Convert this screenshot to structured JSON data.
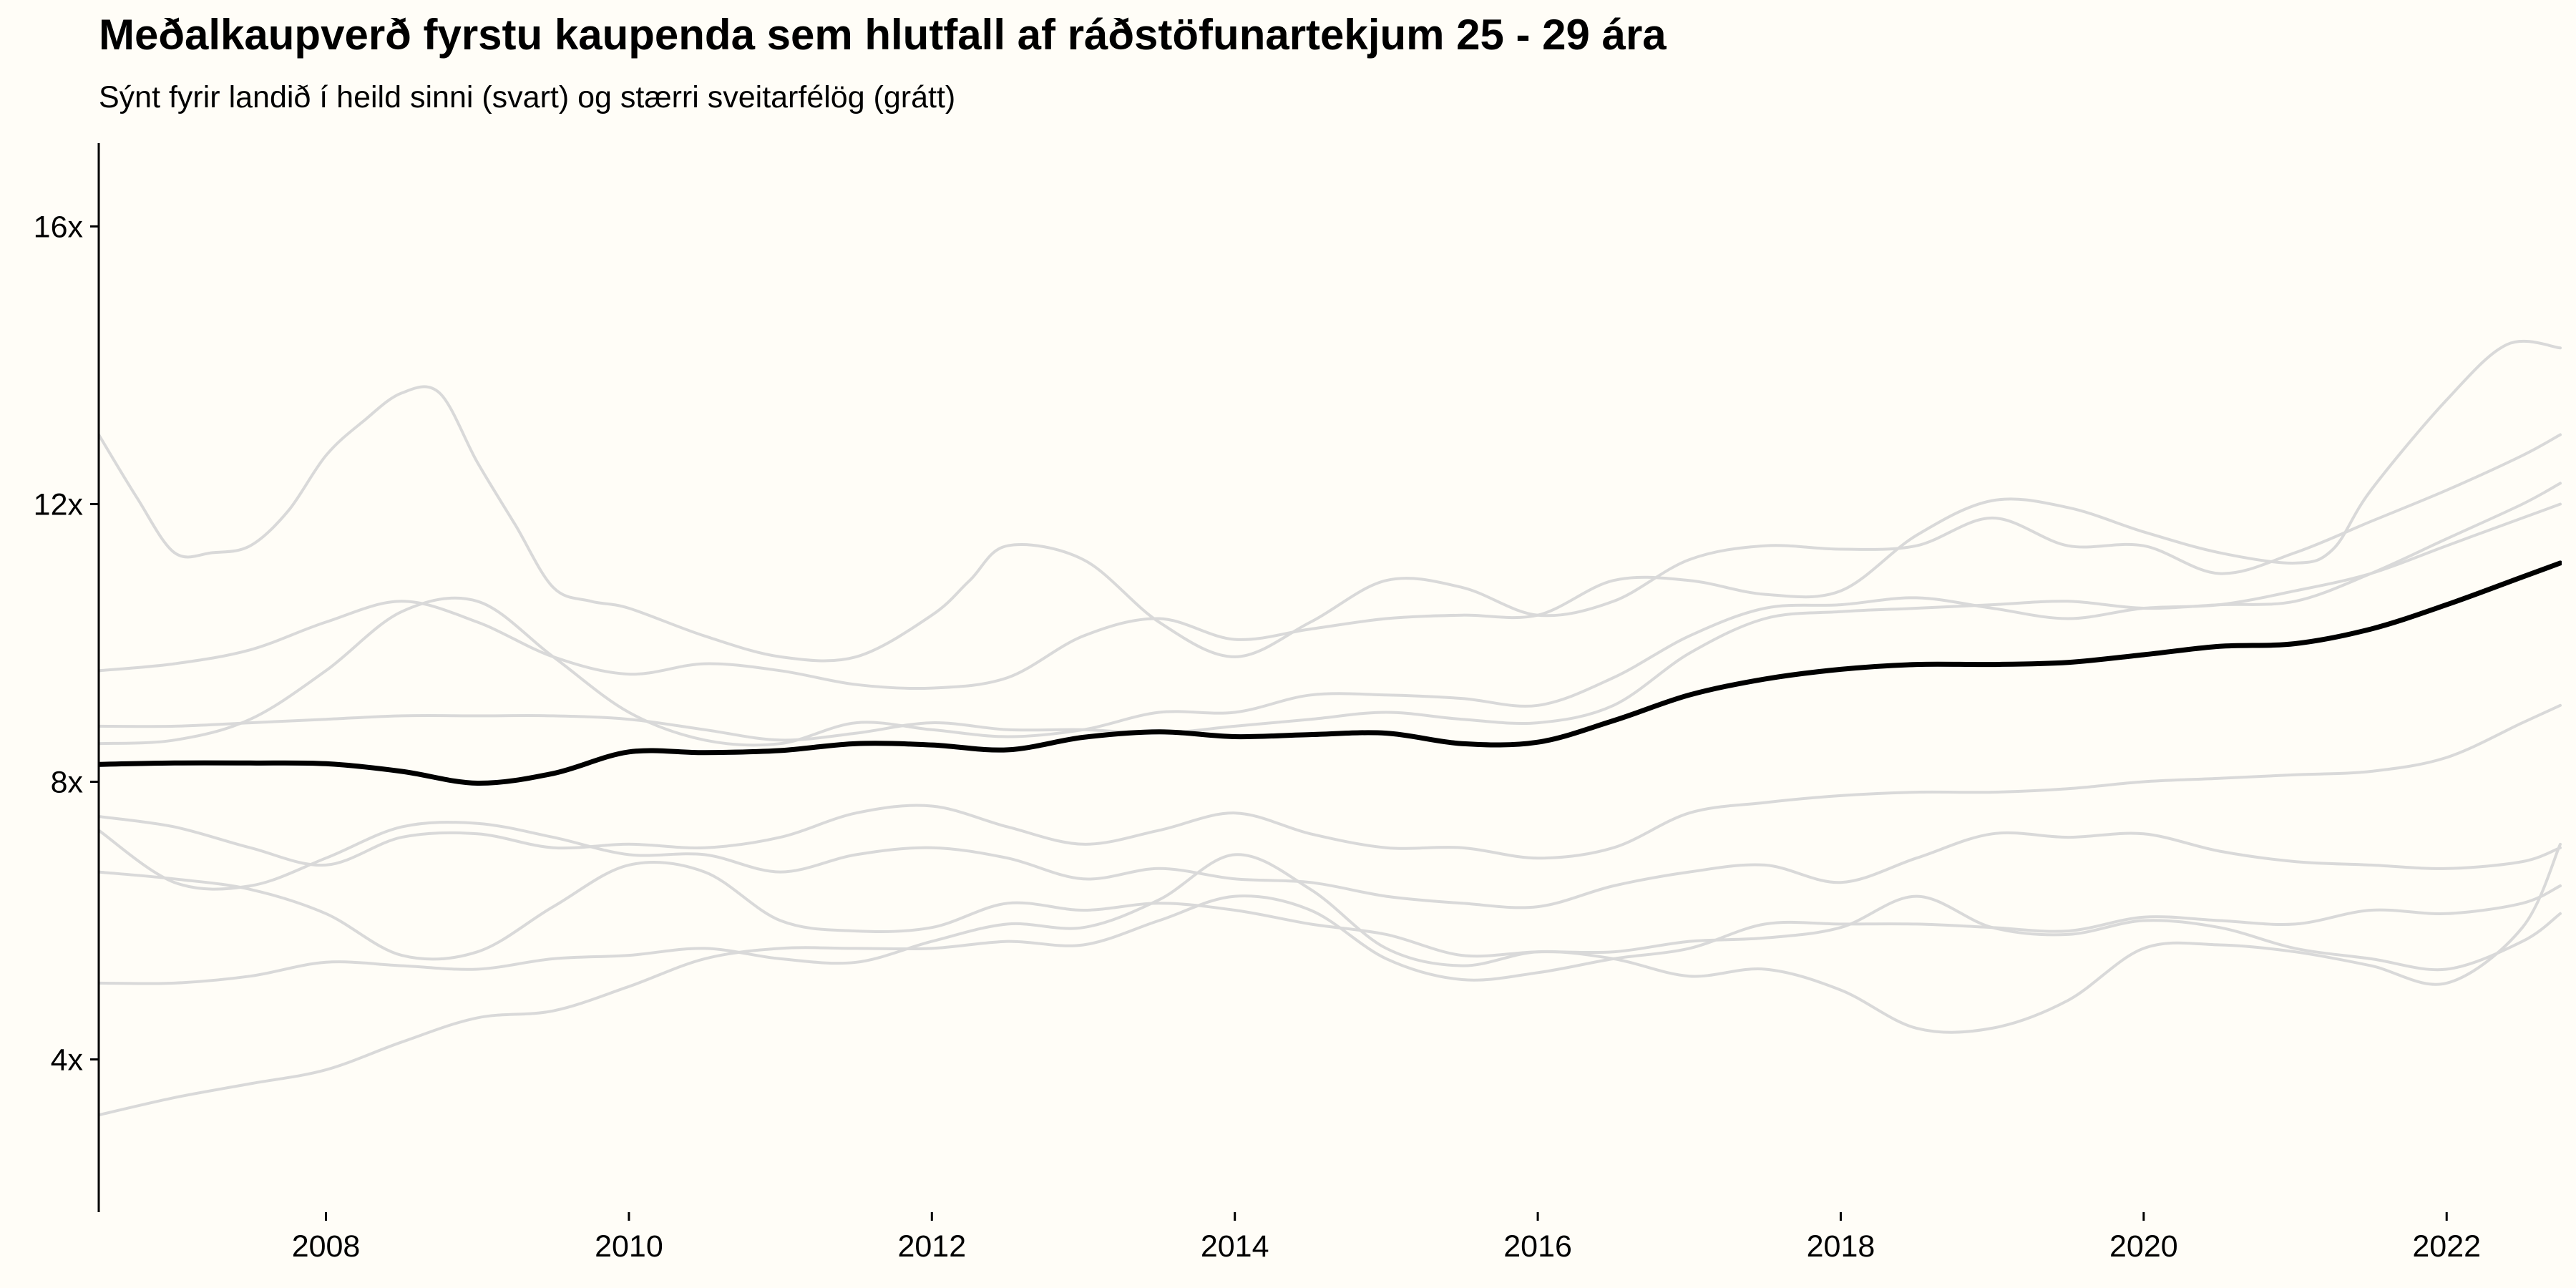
{
  "title": "Meðalkaupverð fyrstu kaupenda sem hlutfall af ráðstöfunartekjum 25 - 29 ára",
  "subtitle": "Sýnt fyrir landið í heild sinni (svart) og stærri sveitarfélög (grátt)",
  "chart_data": {
    "type": "line",
    "title": "Meðalkaupverð fyrstu kaupenda sem hlutfall af ráðstöfunartekjum 25 - 29 ára",
    "subtitle": "Sýnt fyrir landið í heild sinni (svart) og stærri sveitarfélög (grátt)",
    "xlabel": "",
    "ylabel": "",
    "xlim": [
      2006.5,
      2022.75
    ],
    "ylim": [
      1.8,
      17.2
    ],
    "x_ticks": [
      2008,
      2010,
      2012,
      2014,
      2016,
      2018,
      2020,
      2022
    ],
    "x_tick_labels": [
      "2008",
      "2010",
      "2012",
      "2014",
      "2016",
      "2018",
      "2020",
      "2022"
    ],
    "y_ticks": [
      4,
      8,
      12,
      16
    ],
    "y_tick_labels": [
      "4x",
      "8x",
      "12x",
      "16x"
    ],
    "grid": false,
    "legend": "none",
    "colors": {
      "background": "#fffdf7",
      "highlight": "#000000",
      "others": "#d9d9d9"
    },
    "highlight_series": {
      "x": [
        2006.5,
        2007,
        2007.5,
        2008,
        2008.5,
        2009,
        2009.5,
        2010,
        2010.5,
        2011,
        2011.5,
        2012,
        2012.5,
        2013,
        2013.5,
        2014,
        2014.5,
        2015,
        2015.5,
        2016,
        2016.5,
        2017,
        2017.5,
        2018,
        2018.5,
        2019,
        2019.5,
        2020,
        2020.5,
        2021,
        2021.5,
        2022,
        2022.5,
        2022.75
      ],
      "values": [
        8.25,
        8.27,
        8.27,
        8.26,
        8.15,
        7.98,
        8.12,
        8.43,
        8.42,
        8.45,
        8.55,
        8.53,
        8.46,
        8.64,
        8.72,
        8.65,
        8.68,
        8.7,
        8.55,
        8.57,
        8.88,
        9.25,
        9.48,
        9.62,
        9.69,
        9.69,
        9.72,
        9.83,
        9.95,
        9.99,
        10.2,
        10.55,
        10.95,
        11.15
      ]
    },
    "series": [
      {
        "x": [
          2006.5,
          2006.75,
          2007,
          2007.25,
          2007.5,
          2007.75,
          2008,
          2008.25,
          2008.5,
          2008.75,
          2009,
          2009.25,
          2009.5,
          2009.75,
          2010,
          2010.5,
          2011,
          2011.5,
          2012,
          2012.25,
          2012.5,
          2013,
          2013.5,
          2014,
          2014.5,
          2015,
          2015.5,
          2016,
          2016.5,
          2017,
          2017.5,
          2018,
          2018.5,
          2019,
          2019.5,
          2020,
          2020.5,
          2021,
          2021.5,
          2022,
          2022.5,
          2022.75
        ],
        "values": [
          13.0,
          12.1,
          11.3,
          11.3,
          11.4,
          11.9,
          12.7,
          13.2,
          13.6,
          13.6,
          12.6,
          11.7,
          10.8,
          10.6,
          10.5,
          10.1,
          9.8,
          9.8,
          10.4,
          10.9,
          11.4,
          11.2,
          10.3,
          9.8,
          10.3,
          10.9,
          10.8,
          10.4,
          10.6,
          11.2,
          11.4,
          11.35,
          11.4,
          11.8,
          11.4,
          11.4,
          11.0,
          11.3,
          11.75,
          12.2,
          12.7,
          13.0
        ]
      },
      {
        "x": [
          2006.5,
          2007,
          2007.5,
          2008,
          2008.5,
          2009,
          2009.5,
          2010,
          2010.5,
          2011,
          2011.5,
          2012,
          2012.5,
          2013,
          2013.5,
          2014,
          2014.5,
          2015,
          2015.5,
          2016,
          2016.5,
          2017,
          2017.5,
          2018,
          2018.5,
          2019,
          2019.5,
          2020,
          2020.5,
          2021,
          2021.25,
          2021.5,
          2022,
          2022.4,
          2022.75
        ],
        "values": [
          9.6,
          9.7,
          9.9,
          10.3,
          10.6,
          10.3,
          9.8,
          9.55,
          9.7,
          9.6,
          9.4,
          9.35,
          9.5,
          10.1,
          10.35,
          10.05,
          10.2,
          10.35,
          10.4,
          10.4,
          10.9,
          10.9,
          10.7,
          10.75,
          11.55,
          12.05,
          11.95,
          11.6,
          11.3,
          11.15,
          11.35,
          12.2,
          13.5,
          14.3,
          14.25
        ]
      },
      {
        "x": [
          2006.5,
          2007,
          2007.5,
          2008,
          2008.5,
          2009,
          2009.5,
          2010,
          2010.5,
          2011,
          2011.5,
          2012,
          2012.5,
          2013,
          2013.5,
          2014,
          2014.5,
          2015,
          2015.5,
          2016,
          2016.5,
          2017,
          2017.5,
          2018,
          2018.5,
          2019,
          2019.5,
          2020,
          2020.5,
          2021,
          2021.5,
          2022,
          2022.5,
          2022.75
        ],
        "values": [
          8.55,
          8.6,
          8.9,
          9.6,
          10.45,
          10.6,
          9.8,
          9.0,
          8.6,
          8.55,
          8.85,
          8.75,
          8.65,
          8.75,
          9.0,
          9.0,
          9.25,
          9.25,
          9.2,
          9.1,
          9.5,
          10.1,
          10.5,
          10.55,
          10.65,
          10.5,
          10.35,
          10.5,
          10.55,
          10.75,
          11.0,
          11.4,
          11.8,
          12.0
        ]
      },
      {
        "x": [
          2006.5,
          2007,
          2007.5,
          2008,
          2008.5,
          2009,
          2009.5,
          2010,
          2010.5,
          2011,
          2011.5,
          2012,
          2012.5,
          2013,
          2013.5,
          2014,
          2014.5,
          2015,
          2015.5,
          2016,
          2016.5,
          2017,
          2017.5,
          2018,
          2018.5,
          2019,
          2019.5,
          2020,
          2020.5,
          2021,
          2021.5,
          2022,
          2022.5,
          2022.75
        ],
        "values": [
          8.8,
          8.8,
          8.85,
          8.9,
          8.95,
          8.95,
          8.95,
          8.9,
          8.75,
          8.6,
          8.7,
          8.85,
          8.75,
          8.75,
          8.7,
          8.8,
          8.9,
          9.0,
          8.9,
          8.85,
          9.1,
          9.85,
          10.35,
          10.45,
          10.5,
          10.55,
          10.6,
          10.5,
          10.55,
          10.6,
          11.0,
          11.5,
          12.0,
          12.3
        ]
      },
      {
        "x": [
          2006.5,
          2007,
          2007.5,
          2008,
          2008.5,
          2009,
          2009.5,
          2010,
          2010.5,
          2011,
          2011.5,
          2012,
          2012.5,
          2013,
          2013.5,
          2014,
          2014.5,
          2015,
          2015.5,
          2016,
          2016.5,
          2017,
          2017.5,
          2018,
          2018.5,
          2019,
          2019.5,
          2020,
          2020.5,
          2021,
          2021.5,
          2022,
          2022.5,
          2022.75
        ],
        "values": [
          7.5,
          7.35,
          7.05,
          6.8,
          7.2,
          7.25,
          7.05,
          7.1,
          7.05,
          7.2,
          7.55,
          7.65,
          7.35,
          7.1,
          7.3,
          7.55,
          7.25,
          7.05,
          7.05,
          6.9,
          7.05,
          7.55,
          7.7,
          7.8,
          7.85,
          7.85,
          7.9,
          8.0,
          8.05,
          8.1,
          8.15,
          8.35,
          8.85,
          9.1
        ]
      },
      {
        "x": [
          2006.5,
          2007,
          2007.5,
          2008,
          2008.5,
          2009,
          2009.5,
          2010,
          2010.5,
          2011,
          2011.5,
          2012,
          2012.5,
          2013,
          2013.5,
          2014,
          2014.5,
          2015,
          2015.5,
          2016,
          2016.5,
          2017,
          2017.5,
          2018,
          2018.5,
          2019,
          2019.5,
          2020,
          2020.5,
          2021,
          2021.5,
          2022,
          2022.5,
          2022.75
        ],
        "values": [
          7.3,
          6.55,
          6.5,
          6.9,
          7.35,
          7.4,
          7.2,
          6.95,
          6.95,
          6.7,
          6.95,
          7.05,
          6.9,
          6.6,
          6.75,
          6.6,
          6.55,
          6.35,
          6.25,
          6.2,
          6.5,
          6.7,
          6.8,
          6.55,
          6.9,
          7.25,
          7.2,
          7.25,
          7.0,
          6.85,
          6.8,
          6.75,
          6.85,
          7.05
        ]
      },
      {
        "x": [
          2006.5,
          2007,
          2007.5,
          2008,
          2008.5,
          2009,
          2009.5,
          2010,
          2010.5,
          2011,
          2011.5,
          2012,
          2012.5,
          2013,
          2013.5,
          2014,
          2014.5,
          2015,
          2015.5,
          2016,
          2016.5,
          2017,
          2017.5,
          2018,
          2018.5,
          2019,
          2019.5,
          2020,
          2020.5,
          2021,
          2021.5,
          2022,
          2022.5,
          2022.75
        ],
        "values": [
          6.7,
          6.6,
          6.45,
          6.1,
          5.5,
          5.55,
          6.2,
          6.8,
          6.7,
          6.0,
          5.85,
          5.9,
          6.25,
          6.15,
          6.25,
          6.15,
          5.95,
          5.8,
          5.5,
          5.55,
          5.55,
          5.7,
          5.75,
          5.9,
          6.35,
          5.9,
          5.8,
          6.0,
          5.9,
          5.6,
          5.45,
          5.3,
          5.7,
          6.1
        ]
      },
      {
        "x": [
          2006.5,
          2007,
          2007.5,
          2008,
          2008.5,
          2009,
          2009.5,
          2010,
          2010.5,
          2011,
          2011.5,
          2012,
          2012.5,
          2013,
          2013.5,
          2014,
          2014.5,
          2015,
          2015.5,
          2016,
          2016.5,
          2017,
          2017.5,
          2018,
          2018.5,
          2019,
          2019.5,
          2020,
          2020.5,
          2021,
          2021.5,
          2022,
          2022.5,
          2022.75
        ],
        "values": [
          5.1,
          5.1,
          5.2,
          5.4,
          5.35,
          5.3,
          5.45,
          5.5,
          5.6,
          5.45,
          5.4,
          5.7,
          5.95,
          5.9,
          6.3,
          6.95,
          6.45,
          5.6,
          5.35,
          5.55,
          5.45,
          5.2,
          5.3,
          5.0,
          4.45,
          4.45,
          4.85,
          5.6,
          5.65,
          5.55,
          5.35,
          5.1,
          5.9,
          7.1
        ]
      },
      {
        "x": [
          2006.5,
          2007,
          2007.5,
          2008,
          2008.5,
          2009,
          2009.5,
          2010,
          2010.5,
          2011,
          2011.5,
          2012,
          2012.5,
          2013,
          2013.5,
          2014,
          2014.5,
          2015,
          2015.5,
          2016,
          2016.5,
          2017,
          2017.5,
          2018,
          2018.5,
          2019,
          2019.5,
          2020,
          2020.5,
          2021,
          2021.5,
          2022,
          2022.5,
          2022.75
        ],
        "values": [
          3.2,
          3.45,
          3.65,
          3.85,
          4.25,
          4.6,
          4.7,
          5.05,
          5.45,
          5.6,
          5.6,
          5.6,
          5.7,
          5.65,
          6.0,
          6.35,
          6.15,
          5.45,
          5.15,
          5.25,
          5.45,
          5.6,
          5.95,
          5.95,
          5.95,
          5.9,
          5.85,
          6.05,
          6.0,
          5.95,
          6.15,
          6.1,
          6.25,
          6.5
        ]
      }
    ]
  }
}
